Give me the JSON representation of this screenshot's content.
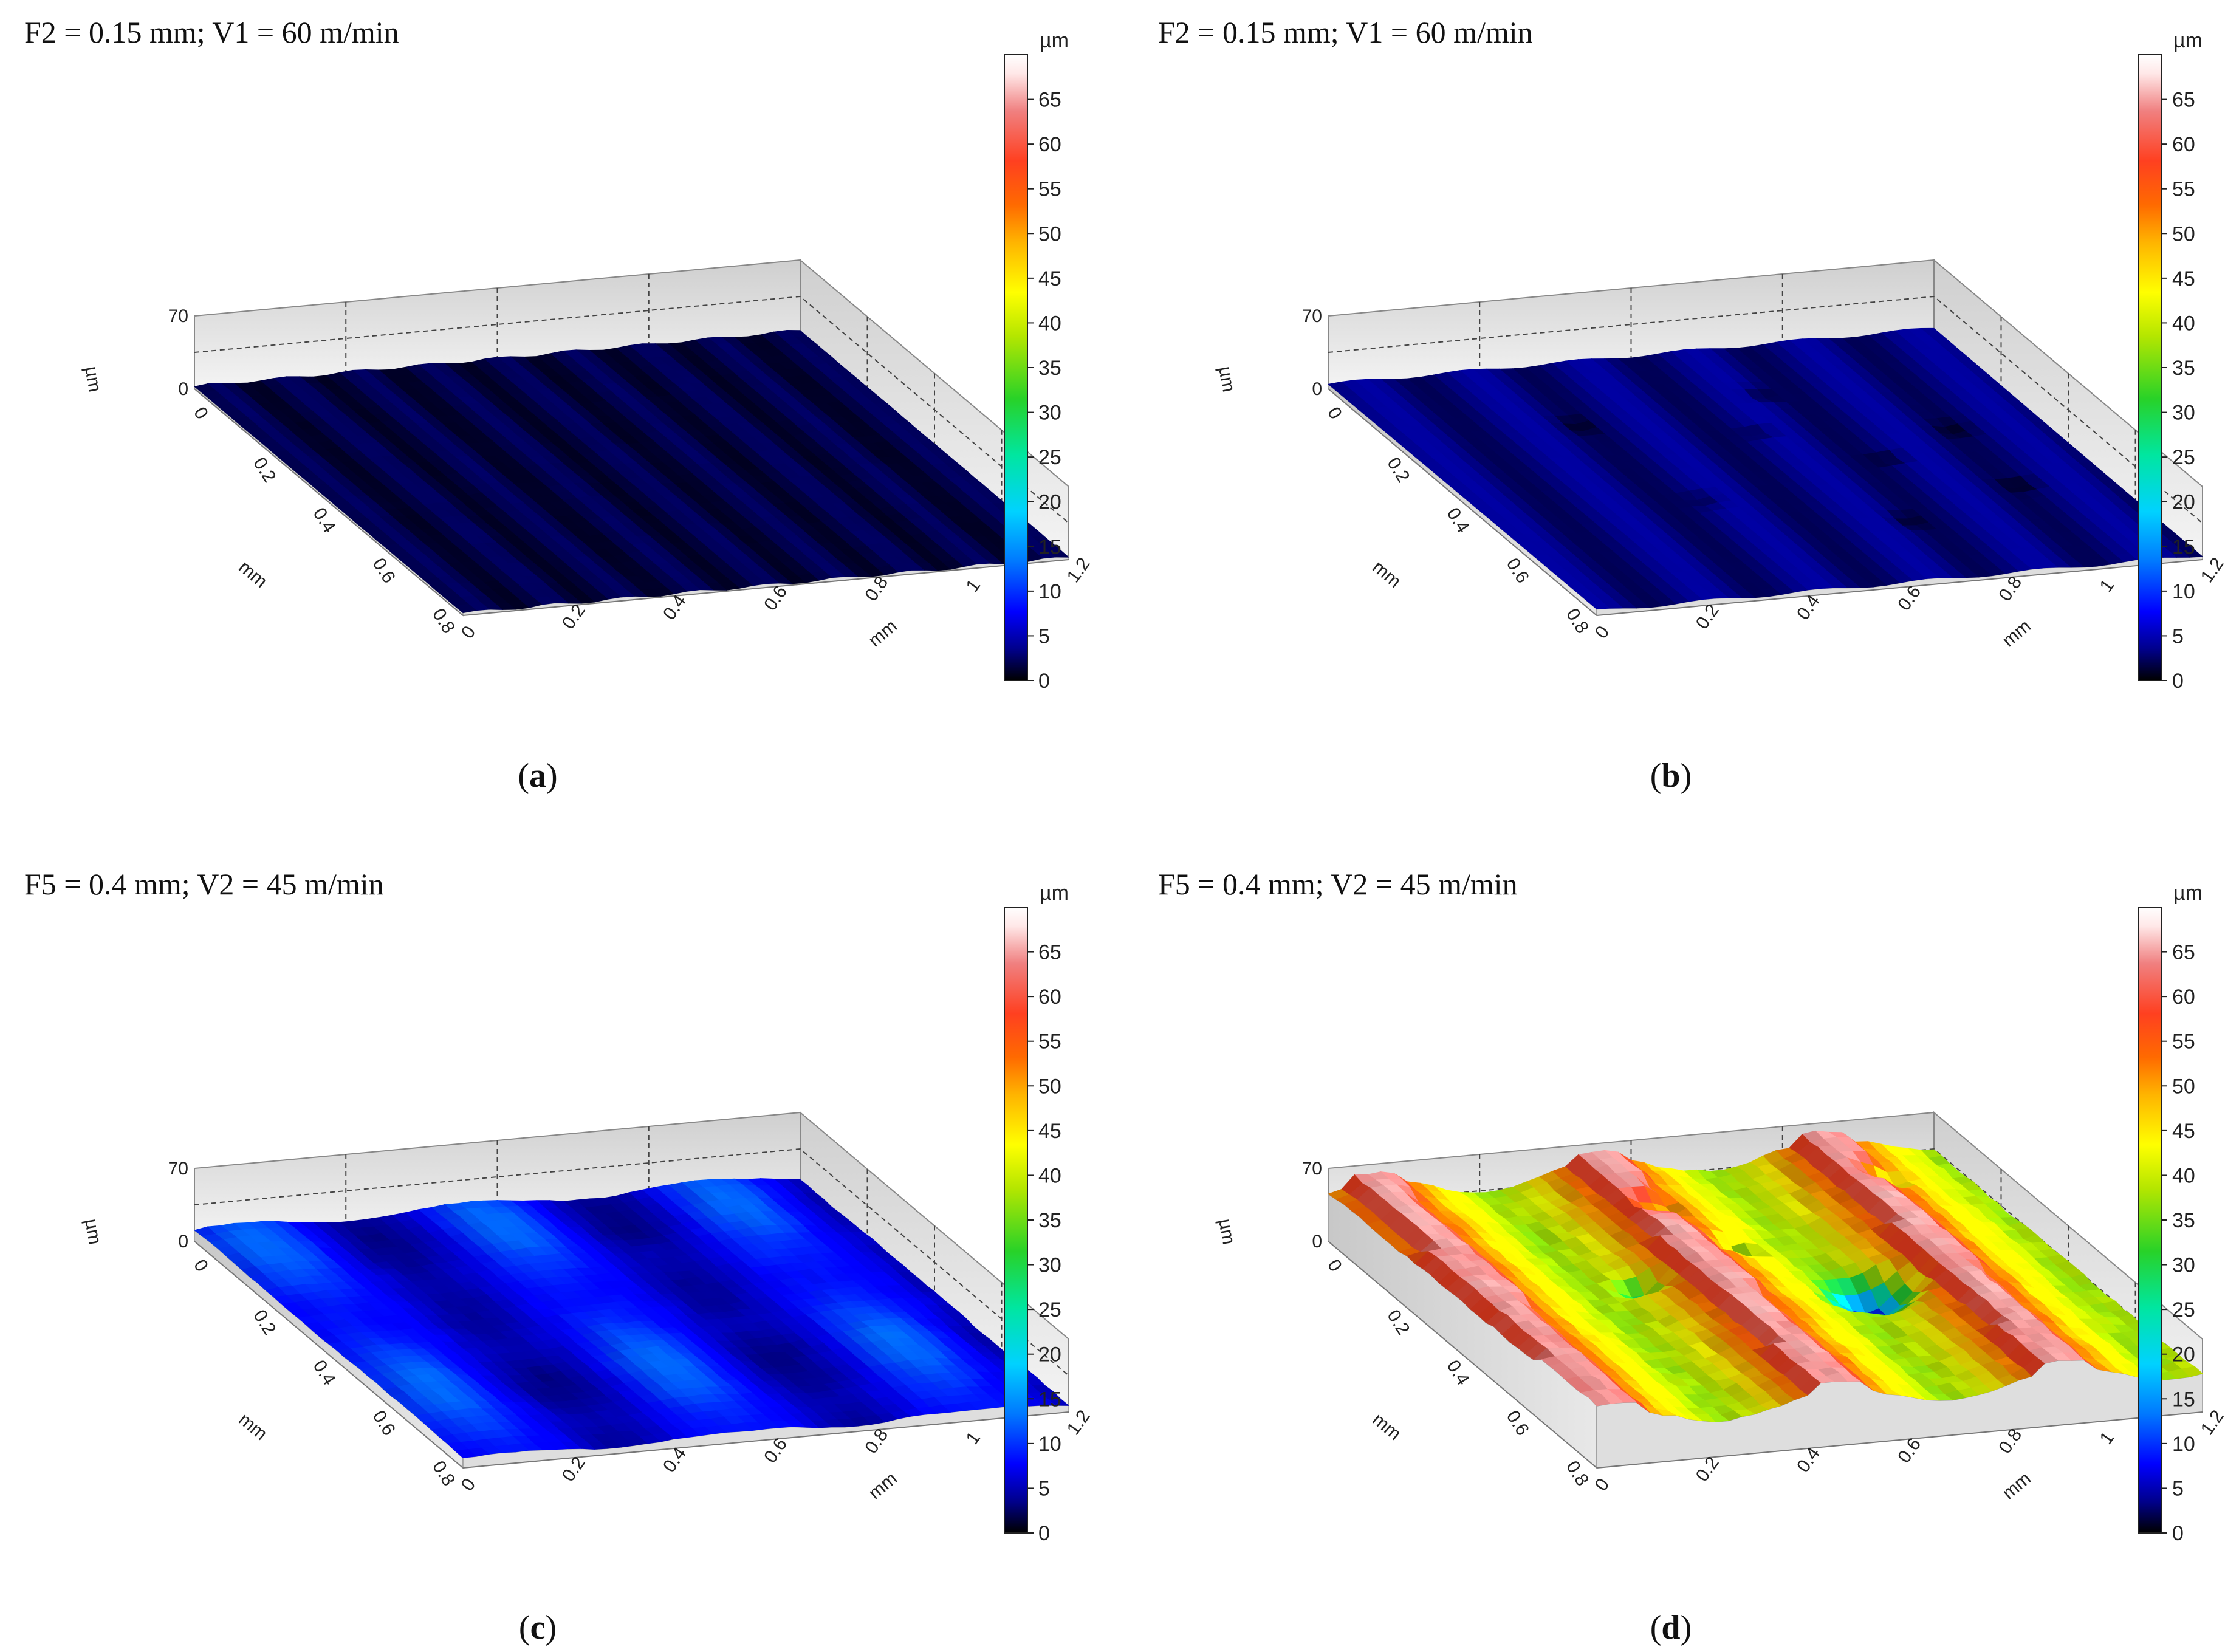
{
  "figure": {
    "panels": [
      {
        "id": "a",
        "title": "F2 = 0.15 mm; V1 = 60 m/min",
        "caption": "a",
        "surface": "flat-fine-grooves"
      },
      {
        "id": "b",
        "title": "F2 = 0.15 mm; V1 = 60 m/min",
        "caption": "b",
        "surface": "flat-pitted"
      },
      {
        "id": "c",
        "title": "F5 = 0.4 mm; V2 = 45 m/min",
        "caption": "c",
        "surface": "wavy"
      },
      {
        "id": "d",
        "title": "F5 = 0.4 mm; V2 = 45 m/min",
        "caption": "d",
        "surface": "rough-high"
      }
    ]
  },
  "chart_data": [
    {
      "type": "heatmap",
      "panel": "a",
      "title": "F2 = 0.15 mm; V1 = 60 m/min",
      "view": "3D surface topography",
      "x_axis": {
        "label": "mm",
        "ticks": [
          "0",
          "0.2",
          "0.4",
          "0.6",
          "0.8"
        ],
        "range": [
          0,
          0.9
        ]
      },
      "y_axis": {
        "label": "mm",
        "ticks": [
          "0",
          "0.2",
          "0.4",
          "0.6",
          "0.8",
          "1",
          "1.2"
        ],
        "range": [
          0,
          1.2
        ]
      },
      "z_axis": {
        "label": "µm",
        "ticks": [
          "0",
          "70"
        ],
        "range": [
          0,
          70
        ]
      },
      "colorbar": {
        "unit": "µm",
        "ticks": [
          "0",
          "5",
          "10",
          "15",
          "20",
          "25",
          "30",
          "35",
          "40",
          "45",
          "50",
          "55",
          "60",
          "65"
        ],
        "range": [
          0,
          70
        ]
      },
      "approx_height_range_um": [
        0,
        6
      ],
      "caption": "(a)"
    },
    {
      "type": "heatmap",
      "panel": "b",
      "title": "F2 = 0.15 mm; V1 = 60 m/min",
      "view": "3D surface topography",
      "x_axis": {
        "label": "mm",
        "ticks": [
          "0",
          "0.2",
          "0.4",
          "0.6",
          "0.8"
        ],
        "range": [
          0,
          0.9
        ]
      },
      "y_axis": {
        "label": "mm",
        "ticks": [
          "0",
          "0.2",
          "0.4",
          "0.6",
          "0.8",
          "1",
          "1.2"
        ],
        "range": [
          0,
          1.2
        ]
      },
      "z_axis": {
        "label": "µm",
        "ticks": [
          "0",
          "70"
        ],
        "range": [
          0,
          70
        ]
      },
      "colorbar": {
        "unit": "µm",
        "ticks": [
          "0",
          "5",
          "10",
          "15",
          "20",
          "25",
          "30",
          "35",
          "40",
          "45",
          "50",
          "55",
          "60",
          "65"
        ],
        "range": [
          0,
          70
        ]
      },
      "approx_height_range_um": [
        0,
        8
      ],
      "caption": "(b)"
    },
    {
      "type": "heatmap",
      "panel": "c",
      "title": "F5 = 0.4 mm; V2 = 45 m/min",
      "view": "3D surface topography",
      "x_axis": {
        "label": "mm",
        "ticks": [
          "0",
          "0.2",
          "0.4",
          "0.6",
          "0.8"
        ],
        "range": [
          0,
          0.9
        ]
      },
      "y_axis": {
        "label": "mm",
        "ticks": [
          "0",
          "0.2",
          "0.4",
          "0.6",
          "0.8",
          "1",
          "1.2"
        ],
        "range": [
          0,
          1.2
        ]
      },
      "z_axis": {
        "label": "µm",
        "ticks": [
          "0",
          "70"
        ],
        "range": [
          0,
          70
        ]
      },
      "colorbar": {
        "unit": "µm",
        "ticks": [
          "0",
          "5",
          "10",
          "15",
          "20",
          "25",
          "30",
          "35",
          "40",
          "45",
          "50",
          "55",
          "60",
          "65"
        ],
        "range": [
          0,
          70
        ]
      },
      "approx_height_range_um": [
        0,
        18
      ],
      "caption": "(c)"
    },
    {
      "type": "heatmap",
      "panel": "d",
      "title": "F5 = 0.4 mm; V2 = 45 m/min",
      "view": "3D surface topography",
      "x_axis": {
        "label": "mm",
        "ticks": [
          "0",
          "0.2",
          "0.4",
          "0.6",
          "0.8"
        ],
        "range": [
          0,
          0.9
        ]
      },
      "y_axis": {
        "label": "mm",
        "ticks": [
          "0",
          "0.2",
          "0.4",
          "0.6",
          "0.8",
          "1",
          "1.2"
        ],
        "range": [
          0,
          1.2
        ]
      },
      "z_axis": {
        "label": "µm",
        "ticks": [
          "0",
          "70"
        ],
        "range": [
          0,
          70
        ]
      },
      "colorbar": {
        "unit": "µm",
        "ticks": [
          "0",
          "5",
          "10",
          "15",
          "20",
          "25",
          "30",
          "35",
          "40",
          "45",
          "50",
          "55",
          "60",
          "65"
        ],
        "range": [
          0,
          70
        ]
      },
      "approx_height_range_um": [
        15,
        62
      ],
      "caption": "(d)"
    }
  ],
  "colormap": [
    "#000000",
    "#00008b",
    "#0000ff",
    "#0078ff",
    "#00d2ff",
    "#00e6a0",
    "#28d228",
    "#b4e600",
    "#ffff00",
    "#ffb400",
    "#ff6a00",
    "#ff4020",
    "#f08080",
    "#ffe8e8",
    "#ffffff"
  ]
}
